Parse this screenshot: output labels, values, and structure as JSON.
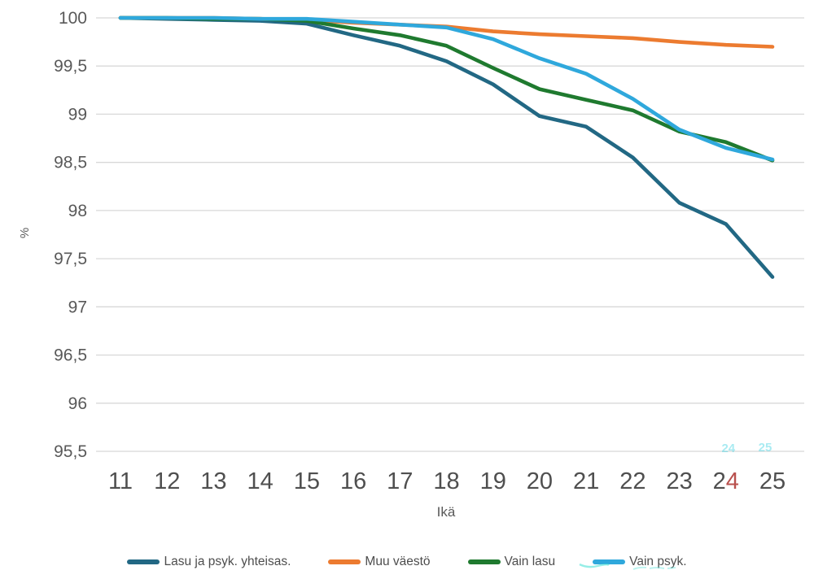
{
  "chart_data": {
    "type": "line",
    "title": "",
    "xlabel": "Ikä",
    "ylabel": "%",
    "xlim": [
      11,
      25
    ],
    "ylim": [
      95.5,
      100
    ],
    "grid": "horizontal-only",
    "legend_position": "bottom",
    "x": [
      11,
      12,
      13,
      14,
      15,
      16,
      17,
      18,
      19,
      20,
      21,
      22,
      23,
      24,
      25
    ],
    "x_tick_labels": [
      "11",
      "12",
      "13",
      "14",
      "15",
      "16",
      "17",
      "18",
      "19",
      "20",
      "21",
      "22",
      "23",
      "24",
      "25"
    ],
    "y_tick_labels": [
      "100",
      "99,5",
      "99",
      "98,5",
      "98",
      "97,5",
      "97",
      "96,5",
      "96",
      "95,5"
    ],
    "y_tick_values": [
      100,
      99.5,
      99,
      98.5,
      98,
      97.5,
      97,
      96.5,
      96,
      95.5
    ],
    "series": [
      {
        "name": "Lasu ja psyk. yhteisas.",
        "color": "#226884",
        "values": [
          100,
          99.99,
          99.98,
          99.97,
          99.94,
          99.82,
          99.71,
          99.55,
          99.31,
          98.98,
          98.87,
          98.55,
          98.08,
          97.86,
          97.31
        ]
      },
      {
        "name": "Muu väestö",
        "color": "#ec7b30",
        "values": [
          100,
          100,
          100,
          99.99,
          99.98,
          99.95,
          99.93,
          99.91,
          99.86,
          99.83,
          99.81,
          99.79,
          99.75,
          99.72,
          99.7
        ]
      },
      {
        "name": "Vain lasu",
        "color": "#1f7a2f",
        "values": [
          100,
          100,
          99.99,
          99.99,
          99.97,
          99.89,
          99.82,
          99.71,
          99.48,
          99.26,
          99.15,
          99.04,
          98.82,
          98.71,
          98.52
        ]
      },
      {
        "name": "Vain psyk.",
        "color": "#2fa8dc",
        "values": [
          100,
          100,
          100,
          99.99,
          99.99,
          99.96,
          99.93,
          99.9,
          99.78,
          99.58,
          99.42,
          99.16,
          98.84,
          98.65,
          98.53
        ]
      }
    ]
  },
  "artifacts": {
    "ghost_tick_labels": {
      "texts": [
        "24",
        "25"
      ],
      "color": "#43d3e3"
    },
    "x_tick_24": {
      "gray_digit": "2",
      "red_digit": "4",
      "gray_color": "#4f4f4f",
      "red_color": "#b9514e"
    },
    "legend_smudge_color": "#3fe0d4"
  }
}
